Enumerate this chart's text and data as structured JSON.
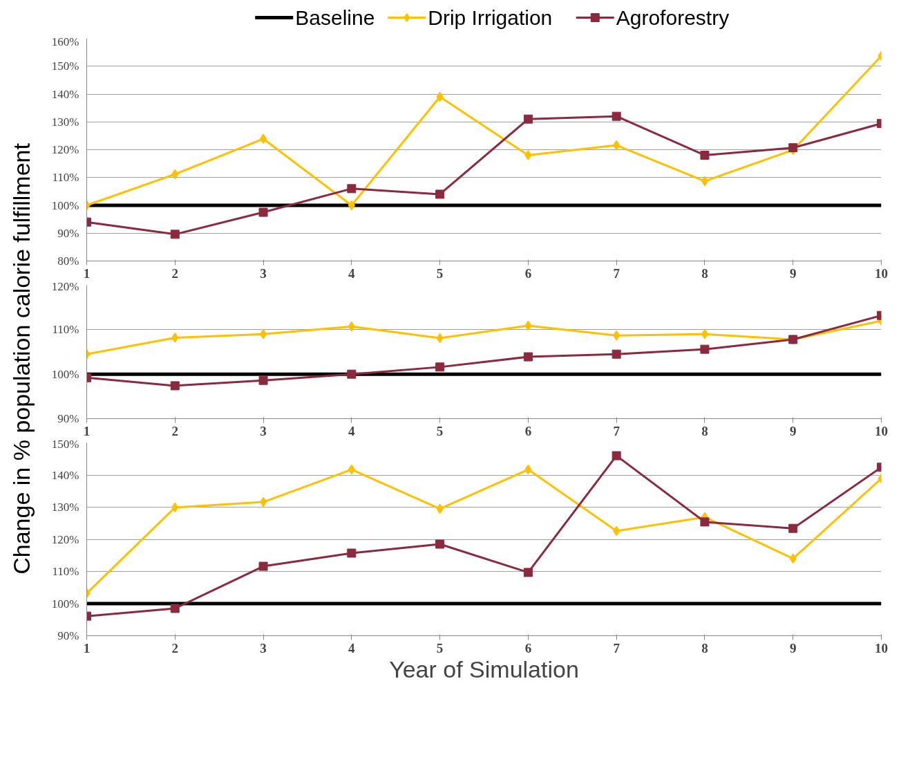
{
  "chart_data": [
    {
      "type": "line",
      "ylabel": "Change in % population calorie fulfillment",
      "legend": "top",
      "grid": "y",
      "line_style": "solid",
      "x": [
        1,
        2,
        3,
        4,
        5,
        6,
        7,
        8,
        9,
        10
      ],
      "xlim": [
        1,
        10
      ],
      "xticks": [
        1,
        2,
        3,
        4,
        5,
        6,
        7,
        8,
        9,
        10
      ],
      "ylim": [
        80,
        160
      ],
      "yticks": [
        {
          "value": 80,
          "label": "80%"
        },
        {
          "value": 90,
          "label": "90%"
        },
        {
          "value": 100,
          "label": "100%"
        },
        {
          "value": 110,
          "label": "110%"
        },
        {
          "value": 120,
          "label": "120%"
        },
        {
          "value": 130,
          "label": "130%"
        },
        {
          "value": 140,
          "label": "140%"
        },
        {
          "value": 150,
          "label": "150%"
        },
        {
          "value": 160,
          "label": "160%"
        }
      ],
      "series": [
        {
          "name": "Baseline",
          "color": "#000000",
          "marker": "none",
          "values": [
            100,
            100,
            100,
            100,
            100,
            100,
            100,
            100,
            100,
            100
          ]
        },
        {
          "name": "Drip Irrigation",
          "color": "#ffc000",
          "marker": "diamond",
          "values": [
            100,
            111.2,
            123.9,
            100,
            139,
            118,
            121.6,
            108.7,
            119.9,
            153.7
          ]
        },
        {
          "name": "Agroforestry",
          "color": "#8b2a3e",
          "marker": "square",
          "values": [
            94,
            89.6,
            97.5,
            106,
            104,
            131,
            132,
            118,
            120.7,
            129.4
          ]
        }
      ]
    },
    {
      "type": "line",
      "legend": false,
      "grid": "y",
      "line_style": "solid",
      "x": [
        1,
        2,
        3,
        4,
        5,
        6,
        7,
        8,
        9,
        10
      ],
      "xlim": [
        1,
        10
      ],
      "xticks": [
        1,
        2,
        3,
        4,
        5,
        6,
        7,
        8,
        9,
        10
      ],
      "ylim": [
        90,
        120
      ],
      "yticks": [
        {
          "value": 90,
          "label": "90%"
        },
        {
          "value": 100,
          "label": "100%"
        },
        {
          "value": 110,
          "label": "110%"
        },
        {
          "value": 120,
          "label": "120%"
        }
      ],
      "series": [
        {
          "color": "#000000",
          "marker": "none",
          "values": [
            100,
            100,
            100,
            100,
            100,
            100,
            100,
            100,
            100,
            100
          ]
        },
        {
          "color": "#ffc000",
          "marker": "diamond",
          "values": [
            104.5,
            108.2,
            109,
            110.7,
            108.1,
            110.9,
            108.7,
            109,
            107.8,
            112
          ]
        },
        {
          "color": "#8b2a3e",
          "marker": "square",
          "values": [
            99.2,
            97.4,
            98.6,
            100,
            101.6,
            103.9,
            104.5,
            105.6,
            107.8,
            113.2
          ]
        }
      ]
    },
    {
      "type": "line",
      "xlabel": "Year of Simulation",
      "legend": false,
      "grid": "y",
      "line_style": "solid",
      "x": [
        1,
        2,
        3,
        4,
        5,
        6,
        7,
        8,
        9,
        10
      ],
      "xlim": [
        1,
        10
      ],
      "xticks": [
        1,
        2,
        3,
        4,
        5,
        6,
        7,
        8,
        9,
        10
      ],
      "ylim": [
        90,
        150
      ],
      "yticks": [
        {
          "value": 90,
          "label": "90%"
        },
        {
          "value": 100,
          "label": "100%"
        },
        {
          "value": 110,
          "label": "110%"
        },
        {
          "value": 120,
          "label": "120%"
        },
        {
          "value": 130,
          "label": "130%"
        },
        {
          "value": 140,
          "label": "140%"
        },
        {
          "value": 150,
          "label": "150%"
        }
      ],
      "series": [
        {
          "color": "#000000",
          "marker": "none",
          "values": [
            100,
            100,
            100,
            100,
            100,
            100,
            100,
            100,
            100,
            100
          ]
        },
        {
          "color": "#ffc000",
          "marker": "diamond",
          "values": [
            103.2,
            129.9,
            131.6,
            141.7,
            129.5,
            141.7,
            122.6,
            126.9,
            114,
            138.9
          ]
        },
        {
          "color": "#8b2a3e",
          "marker": "square",
          "values": [
            96.1,
            98.5,
            111.6,
            115.7,
            118.5,
            109.7,
            146,
            125.4,
            123.4,
            142.4
          ]
        }
      ]
    }
  ]
}
